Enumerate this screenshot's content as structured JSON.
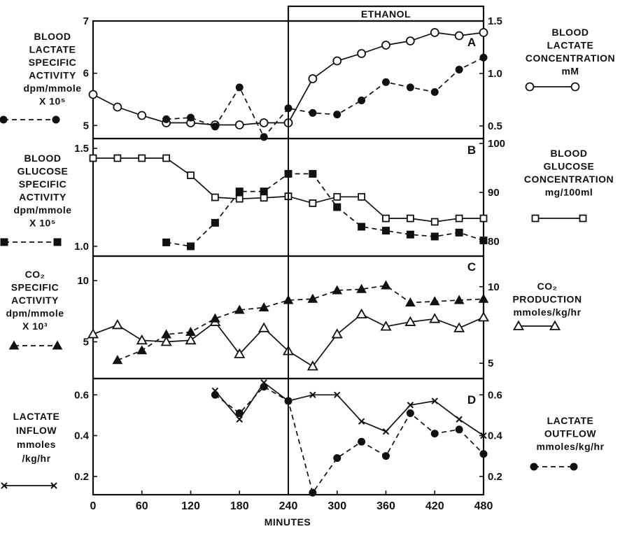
{
  "figure": {
    "xlabel": "MINUTES",
    "x_ticks": [
      "0",
      "60",
      "120",
      "180",
      "240",
      "300",
      "360",
      "420",
      "480"
    ],
    "x_range": [
      0,
      480
    ],
    "ethanol_label": "ETHANOL",
    "ethanol_start": 240,
    "ethanol_end": 480
  },
  "chart_data": [
    {
      "type": "line",
      "panel": "A",
      "left_label": [
        "BLOOD",
        "LACTATE",
        "SPECIFIC",
        "ACTIVITY",
        "dpm/mmole",
        "X 10⁵"
      ],
      "right_label": [
        "BLOOD",
        "LACTATE",
        "CONCENTRATION",
        "mM"
      ],
      "left_ylim": [
        4.75,
        7
      ],
      "left_ticks": [
        "5",
        "6",
        "7"
      ],
      "right_ylim": [
        0.38,
        1.5
      ],
      "right_ticks": [
        "0.5",
        "1.0",
        "1.5"
      ],
      "series": [
        {
          "axis": "right",
          "style": "solid",
          "marker": "open-circle",
          "x": [
            0,
            30,
            60,
            90,
            120,
            150,
            180,
            210,
            240,
            270,
            300,
            330,
            360,
            390,
            420,
            450,
            480
          ],
          "y": [
            0.8,
            0.68,
            0.6,
            0.53,
            0.53,
            0.51,
            0.51,
            0.53,
            0.53,
            0.95,
            1.12,
            1.19,
            1.27,
            1.31,
            1.39,
            1.36,
            1.39
          ]
        },
        {
          "axis": "left",
          "style": "dashed",
          "marker": "filled-circle",
          "x": [
            90,
            120,
            150,
            180,
            210,
            240,
            270,
            300,
            330,
            360,
            390,
            420,
            450,
            480
          ],
          "y": [
            5.12,
            5.15,
            4.98,
            5.73,
            4.78,
            5.33,
            5.24,
            5.21,
            5.48,
            5.83,
            5.73,
            5.64,
            6.07,
            6.3
          ]
        }
      ]
    },
    {
      "type": "line",
      "panel": "B",
      "left_label": [
        "BLOOD",
        "GLUCOSE",
        "SPECIFIC",
        "ACTIVITY",
        "dpm/mmole",
        "X 10⁵"
      ],
      "right_label": [
        "BLOOD",
        "GLUCOSE",
        "CONCENTRATION",
        "mg/100ml"
      ],
      "left_ylim": [
        0.95,
        1.55
      ],
      "left_ticks": [
        "1.0",
        "1.5"
      ],
      "right_ylim": [
        77,
        101
      ],
      "right_ticks": [
        "80",
        "90",
        "100"
      ],
      "series": [
        {
          "axis": "right",
          "style": "solid",
          "marker": "open-square",
          "x": [
            0,
            30,
            60,
            90,
            120,
            150,
            180,
            210,
            240,
            270,
            300,
            330,
            360,
            390,
            420,
            450,
            480
          ],
          "y": [
            97,
            97,
            97,
            97,
            93.5,
            89,
            88.7,
            88.9,
            89.2,
            87.8,
            89.1,
            89.1,
            84.7,
            84.7,
            84,
            84.7,
            84.7
          ]
        },
        {
          "axis": "left",
          "style": "dashed",
          "marker": "filled-square",
          "x": [
            90,
            120,
            150,
            180,
            210,
            240,
            270,
            300,
            330,
            360,
            390,
            420,
            450,
            480
          ],
          "y": [
            1.02,
            1.0,
            1.12,
            1.28,
            1.28,
            1.37,
            1.37,
            1.2,
            1.1,
            1.08,
            1.06,
            1.05,
            1.07,
            1.03
          ]
        }
      ]
    },
    {
      "type": "line",
      "panel": "C",
      "left_label": [
        "CO₂",
        "SPECIFIC",
        "ACTIVITY",
        "dpm/mmole",
        "X 10³"
      ],
      "right_label": [
        "CO₂",
        "PRODUCTION",
        "mmoles/kg/hr"
      ],
      "left_ylim": [
        2,
        12
      ],
      "left_ticks": [
        "5",
        "10"
      ],
      "right_ylim": [
        4,
        12
      ],
      "right_ticks": [
        "5",
        "10"
      ],
      "series": [
        {
          "axis": "right",
          "style": "solid",
          "marker": "open-triangle",
          "x": [
            0,
            30,
            60,
            90,
            120,
            150,
            180,
            210,
            240,
            270,
            300,
            330,
            360,
            390,
            420,
            450,
            480
          ],
          "y": [
            6.9,
            7.5,
            6.5,
            6.4,
            6.5,
            7.7,
            5.6,
            7.3,
            5.8,
            4.8,
            6.9,
            8.2,
            7.4,
            7.7,
            7.9,
            7.3,
            8.0
          ]
        },
        {
          "axis": "left",
          "style": "dashed",
          "marker": "filled-triangle",
          "x": [
            30,
            60,
            90,
            120,
            150,
            180,
            210,
            240,
            270,
            300,
            330,
            360,
            390,
            420,
            450,
            480
          ],
          "y": [
            3.5,
            4.3,
            5.6,
            5.8,
            6.9,
            7.6,
            7.8,
            8.4,
            8.5,
            9.2,
            9.3,
            9.6,
            8.2,
            8.3,
            8.4,
            8.5
          ]
        }
      ]
    },
    {
      "type": "line",
      "panel": "D",
      "left_label": [
        "LACTATE",
        "INFLOW",
        "mmoles",
        "/kg/hr"
      ],
      "right_label": [
        "LACTATE",
        "OUTFLOW",
        "mmoles/kg/hr"
      ],
      "left_ylim": [
        0.11,
        0.68
      ],
      "left_ticks": [
        "0.2",
        "0.4",
        "0.6"
      ],
      "right_ylim": [
        0.11,
        0.68
      ],
      "right_ticks": [
        "0.2",
        "0.4",
        "0.6"
      ],
      "series": [
        {
          "axis": "left",
          "style": "solid",
          "marker": "x",
          "x": [
            150,
            180,
            210,
            240,
            270,
            300,
            330,
            360,
            390,
            420,
            450,
            480
          ],
          "y": [
            0.62,
            0.48,
            0.66,
            0.57,
            0.6,
            0.6,
            0.47,
            0.42,
            0.55,
            0.57,
            0.48,
            0.4
          ]
        },
        {
          "axis": "right",
          "style": "dashed",
          "marker": "filled-circle",
          "x": [
            150,
            180,
            210,
            240,
            270,
            300,
            330,
            360,
            390,
            420,
            450,
            480
          ],
          "y": [
            0.6,
            0.51,
            0.64,
            0.57,
            0.12,
            0.29,
            0.37,
            0.3,
            0.51,
            0.41,
            0.43,
            0.31
          ]
        }
      ]
    }
  ]
}
